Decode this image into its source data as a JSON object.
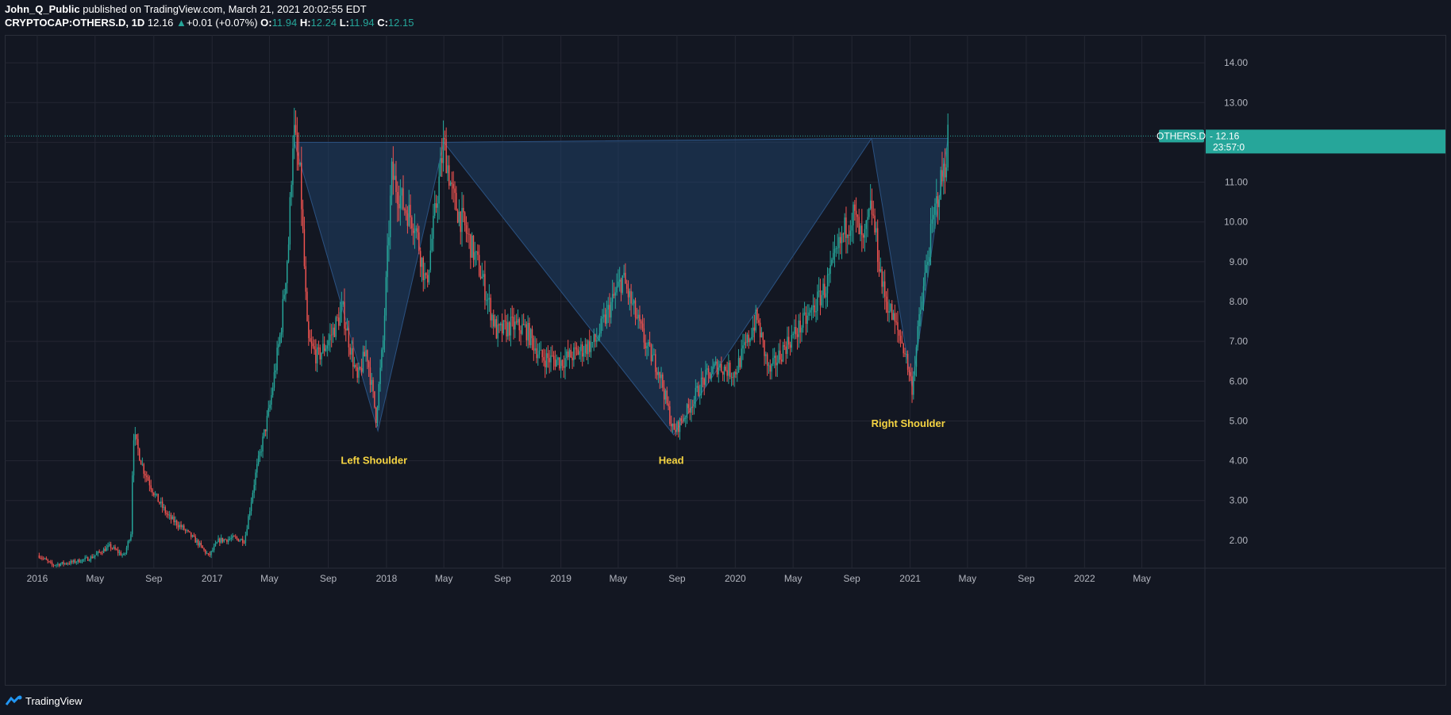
{
  "header": {
    "author": "John_Q_Public",
    "published_text": "published on TradingView.com, March 21, 2021 20:02:55 EDT",
    "symbol": "CRYPTOCAP:OTHERS.D, 1D",
    "last": "12.16",
    "change": "+0.01 (+0.07%)",
    "o_label": "O:",
    "o_value": "11.94",
    "h_label": "H:",
    "h_value": "12.24",
    "l_label": "L:",
    "l_value": "11.94",
    "c_label": "C:",
    "c_value": "12.15"
  },
  "footer": {
    "brand": "TradingView"
  },
  "colors": {
    "background": "#131722",
    "grid": "#242733",
    "up": "#26a69a",
    "down": "#ef5350",
    "pattern_fill": "#1f3f66",
    "annotation": "#f5d442",
    "badge": "#26a69a"
  },
  "chart_data": {
    "type": "candlestick",
    "symbol": "OTHERS.D",
    "timeframe": "1D",
    "price_badge": {
      "label": "OTHERS.D",
      "value": "12.16",
      "countdown": "23:57:0"
    },
    "ylim": [
      1.3,
      14.7
    ],
    "yticks": [
      "14.00",
      "13.00",
      "12.00",
      "11.00",
      "10.00",
      "9.00",
      "8.00",
      "7.00",
      "6.00",
      "5.00",
      "4.00",
      "3.00",
      "2.00"
    ],
    "x_range": [
      "2015-10-25",
      "2022-09-10"
    ],
    "xticks": [
      {
        "label": "2016",
        "date": "2016-01-01"
      },
      {
        "label": "May",
        "date": "2016-05-01"
      },
      {
        "label": "Sep",
        "date": "2016-09-01"
      },
      {
        "label": "2017",
        "date": "2017-01-01"
      },
      {
        "label": "May",
        "date": "2017-05-01"
      },
      {
        "label": "Sep",
        "date": "2017-09-01"
      },
      {
        "label": "2018",
        "date": "2018-01-01"
      },
      {
        "label": "May",
        "date": "2018-05-01"
      },
      {
        "label": "Sep",
        "date": "2018-09-01"
      },
      {
        "label": "2019",
        "date": "2019-01-01"
      },
      {
        "label": "May",
        "date": "2019-05-01"
      },
      {
        "label": "Sep",
        "date": "2019-09-01"
      },
      {
        "label": "2020",
        "date": "2020-01-01"
      },
      {
        "label": "May",
        "date": "2020-05-01"
      },
      {
        "label": "Sep",
        "date": "2020-09-01"
      },
      {
        "label": "2021",
        "date": "2021-01-01"
      },
      {
        "label": "May",
        "date": "2021-05-01"
      },
      {
        "label": "Sep",
        "date": "2021-09-01"
      },
      {
        "label": "2022",
        "date": "2022-01-01"
      },
      {
        "label": "May",
        "date": "2022-05-01"
      }
    ],
    "price_path": [
      [
        "2016-01-05",
        1.62
      ],
      [
        "2016-02-01",
        1.38
      ],
      [
        "2016-03-15",
        1.45
      ],
      [
        "2016-04-20",
        1.55
      ],
      [
        "2016-06-01",
        1.85
      ],
      [
        "2016-07-01",
        1.6
      ],
      [
        "2016-07-15",
        2.2
      ],
      [
        "2016-07-20",
        4.7
      ],
      [
        "2016-08-10",
        3.8
      ],
      [
        "2016-09-05",
        3.1
      ],
      [
        "2016-10-01",
        2.6
      ],
      [
        "2016-11-01",
        2.3
      ],
      [
        "2016-12-01",
        1.95
      ],
      [
        "2016-12-25",
        1.6
      ],
      [
        "2017-01-15",
        2.0
      ],
      [
        "2017-02-15",
        2.05
      ],
      [
        "2017-03-10",
        2.0
      ],
      [
        "2017-04-01",
        3.6
      ],
      [
        "2017-05-01",
        5.3
      ],
      [
        "2017-05-25",
        7.3
      ],
      [
        "2017-06-10",
        9.5
      ],
      [
        "2017-06-20",
        12.4
      ],
      [
        "2017-07-05",
        11.0
      ],
      [
        "2017-07-20",
        7.0
      ],
      [
        "2017-08-10",
        6.6
      ],
      [
        "2017-09-01",
        7.0
      ],
      [
        "2017-10-01",
        7.8
      ],
      [
        "2017-11-01",
        6.0
      ],
      [
        "2017-11-20",
        6.8
      ],
      [
        "2017-12-10",
        5.1
      ],
      [
        "2017-12-25",
        7.0
      ],
      [
        "2018-01-12",
        11.2
      ],
      [
        "2018-02-06",
        10.4
      ],
      [
        "2018-03-01",
        10.0
      ],
      [
        "2018-03-25",
        8.4
      ],
      [
        "2018-05-01",
        12.0
      ],
      [
        "2018-05-20",
        10.6
      ],
      [
        "2018-06-15",
        9.8
      ],
      [
        "2018-07-15",
        8.8
      ],
      [
        "2018-08-20",
        7.2
      ],
      [
        "2018-09-20",
        7.4
      ],
      [
        "2018-10-20",
        7.3
      ],
      [
        "2018-11-20",
        6.6
      ],
      [
        "2019-01-01",
        6.5
      ],
      [
        "2019-02-01",
        6.7
      ],
      [
        "2019-03-15",
        7.0
      ],
      [
        "2019-04-15",
        7.9
      ],
      [
        "2019-05-10",
        8.6
      ],
      [
        "2019-06-05",
        7.7
      ],
      [
        "2019-07-01",
        6.8
      ],
      [
        "2019-07-25",
        6.3
      ],
      [
        "2019-08-15",
        5.2
      ],
      [
        "2019-08-25",
        4.7
      ],
      [
        "2019-09-25",
        5.3
      ],
      [
        "2019-10-25",
        6.0
      ],
      [
        "2019-11-25",
        6.4
      ],
      [
        "2019-12-31",
        6.2
      ],
      [
        "2020-02-15",
        7.6
      ],
      [
        "2020-03-12",
        6.2
      ],
      [
        "2020-04-15",
        6.9
      ],
      [
        "2020-06-01",
        7.6
      ],
      [
        "2020-07-10",
        8.4
      ],
      [
        "2020-08-20",
        9.9
      ],
      [
        "2020-09-05",
        10.2
      ],
      [
        "2020-09-25",
        9.4
      ],
      [
        "2020-10-12",
        10.4
      ],
      [
        "2020-11-05",
        8.3
      ],
      [
        "2020-11-25",
        7.6
      ],
      [
        "2020-12-20",
        6.8
      ],
      [
        "2021-01-05",
        5.85
      ],
      [
        "2021-01-20",
        7.5
      ],
      [
        "2021-02-10",
        9.4
      ],
      [
        "2021-02-28",
        10.7
      ],
      [
        "2021-03-15",
        11.4
      ],
      [
        "2021-03-21",
        12.15
      ]
    ],
    "pattern_triangles": [
      [
        [
          "2017-06-22",
          12.0
        ],
        [
          "2017-12-14",
          4.75
        ],
        [
          "2018-05-01",
          12.0
        ]
      ],
      [
        [
          "2018-05-01",
          12.0
        ],
        [
          "2019-08-25",
          4.65
        ],
        [
          "2020-10-12",
          12.1
        ]
      ],
      [
        [
          "2020-10-12",
          12.1
        ],
        [
          "2021-01-05",
          5.85
        ],
        [
          "2021-03-21",
          12.1
        ]
      ]
    ],
    "annotations": [
      {
        "text": "Left Shoulder",
        "date": "2017-12-06",
        "price": 4.0
      },
      {
        "text": "Head",
        "date": "2019-08-20",
        "price": 4.0
      },
      {
        "text": "Right Shoulder",
        "date": "2020-12-28",
        "price": 4.93
      }
    ],
    "current_price_line": 12.16,
    "grid": true
  }
}
